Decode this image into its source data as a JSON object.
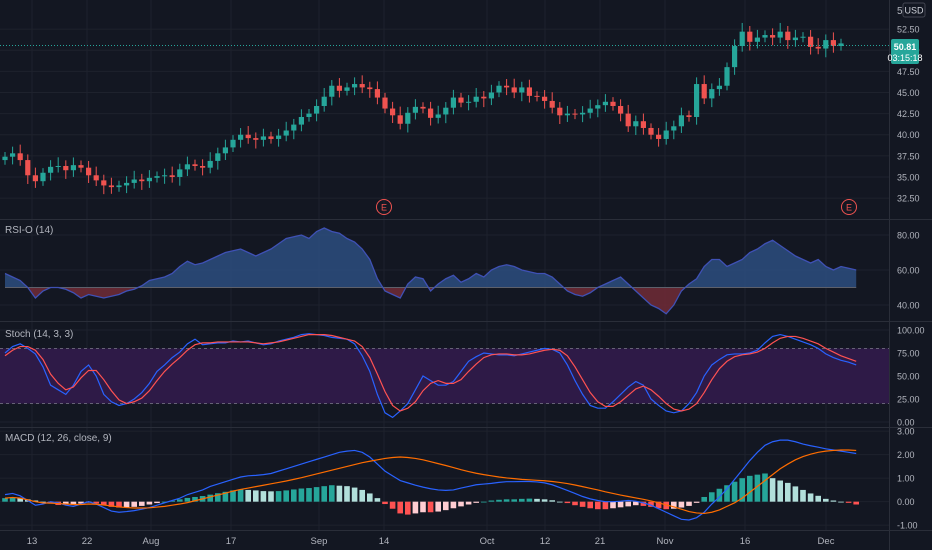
{
  "colors": {
    "background": "#131722",
    "grid": "#1e222d",
    "separator": "#2a2e39",
    "text": "#b2b5be",
    "up": "#26a69a",
    "down": "#ef5350",
    "rsi_line": "#3f51b5",
    "stoch_k": "#2962ff",
    "stoch_d": "#ff5252",
    "stoch_band": "#2e1a47",
    "macd_line": "#2962ff",
    "signal_line": "#ff6d00",
    "price_badge": "#26a69a"
  },
  "currency": "USD",
  "current_price": "50.81",
  "countdown": "03:15:18",
  "earnings_marker": "E",
  "x_axis_labels": [
    "13",
    "22",
    "Aug",
    "17",
    "Sep",
    "14",
    "Oct",
    "12",
    "21",
    "Nov",
    "16",
    "Dec"
  ],
  "panels": {
    "price": {
      "yticks": [
        "52.50",
        "50.00",
        "47.50",
        "45.00",
        "42.50",
        "40.00",
        "37.50",
        "35.00",
        "32.50"
      ],
      "top_label": "5"
    },
    "rsi": {
      "title": "RSI-O (14)",
      "yticks": [
        "80.00",
        "60.00",
        "40.00"
      ]
    },
    "stoch": {
      "title": "Stoch (14, 3, 3)",
      "yticks": [
        "100.00",
        "75.00",
        "50.00",
        "25.00",
        "0.00"
      ]
    },
    "macd": {
      "title": "MACD (12, 26, close, 9)",
      "yticks": [
        "3.00",
        "2.00",
        "1.00",
        "0.00",
        "-1.00"
      ]
    }
  },
  "chart_data": [
    {
      "type": "candlestick",
      "title": "",
      "ylim": [
        30.5,
        55
      ],
      "close": [
        37.4,
        37.8,
        37.0,
        35.2,
        34.5,
        35.5,
        36.2,
        36.3,
        35.8,
        36.4,
        36.1,
        35.2,
        34.6,
        34.0,
        33.8,
        34.0,
        34.3,
        34.7,
        34.5,
        34.9,
        35.1,
        35.2,
        35.0,
        35.9,
        36.5,
        36.3,
        36.1,
        36.9,
        37.8,
        38.5,
        39.4,
        40.0,
        39.6,
        39.4,
        39.8,
        39.5,
        39.9,
        40.5,
        41.2,
        42.1,
        42.5,
        43.4,
        44.5,
        45.8,
        45.2,
        45.6,
        46.0,
        45.6,
        45.4,
        44.4,
        43.1,
        42.3,
        41.3,
        42.6,
        43.3,
        43.1,
        42.0,
        42.4,
        43.2,
        44.4,
        43.8,
        43.9,
        44.5,
        44.3,
        45.0,
        45.8,
        45.6,
        45.0,
        45.6,
        44.6,
        44.5,
        44.0,
        43.2,
        42.3,
        42.5,
        42.4,
        42.6,
        43.1,
        43.5,
        43.9,
        43.4,
        42.5,
        41.0,
        41.6,
        40.8,
        40.0,
        39.5,
        40.5,
        41.0,
        42.3,
        42.1,
        46.0,
        44.3,
        45.4,
        45.8,
        48.0,
        50.5,
        52.2,
        51.0,
        51.5,
        51.8,
        51.5,
        52.2,
        51.2,
        51.5,
        51.6,
        50.4,
        50.2,
        51.2,
        50.5,
        50.81
      ],
      "up_color": "#26a69a",
      "down_color": "#ef5350"
    },
    {
      "type": "area",
      "title": "RSI-O (14)",
      "baseline": 50,
      "ylim": [
        32,
        88
      ],
      "values": [
        58,
        56,
        54,
        50,
        44,
        48,
        50,
        50,
        49,
        47,
        44,
        46,
        45,
        44,
        45,
        46,
        48,
        49,
        51,
        54,
        55,
        56,
        58,
        62,
        65,
        63,
        64,
        66,
        68,
        70,
        71,
        72,
        70,
        68,
        70,
        72,
        75,
        78,
        79,
        80,
        78,
        82,
        84,
        82,
        81,
        78,
        76,
        72,
        66,
        55,
        48,
        46,
        44,
        52,
        56,
        55,
        48,
        52,
        55,
        57,
        53,
        55,
        58,
        56,
        60,
        62,
        63,
        62,
        60,
        59,
        58,
        58,
        56,
        52,
        48,
        46,
        45,
        47,
        50,
        52,
        54,
        56,
        52,
        48,
        44,
        40,
        38,
        35,
        40,
        48,
        52,
        55,
        62,
        66,
        66,
        62,
        64,
        66,
        70,
        72,
        75,
        77,
        74,
        71,
        68,
        66,
        64,
        66,
        62,
        60,
        62,
        61,
        60
      ],
      "line_color": "#3f51b5",
      "above_fill": "#2b4a7a",
      "below_fill": "#6b2a35"
    },
    {
      "type": "line",
      "title": "Stoch (14, 3, 3)",
      "ylim": [
        0,
        100
      ],
      "bands": [
        20,
        80
      ],
      "series": [
        {
          "name": "K",
          "values": [
            75,
            82,
            85,
            80,
            74,
            60,
            40,
            35,
            30,
            40,
            55,
            62,
            50,
            30,
            22,
            18,
            20,
            25,
            32,
            42,
            55,
            62,
            70,
            76,
            85,
            90,
            84,
            85,
            86,
            86,
            88,
            87,
            88,
            86,
            84,
            85,
            88,
            90,
            92,
            95,
            96,
            95,
            94,
            92,
            91,
            90,
            85,
            72,
            55,
            30,
            10,
            5,
            12,
            20,
            35,
            50,
            45,
            40,
            40,
            44,
            55,
            66,
            71,
            75,
            74,
            73,
            73,
            72,
            74,
            76,
            78,
            80,
            79,
            75,
            62,
            45,
            30,
            18,
            15,
            15,
            22,
            30,
            38,
            44,
            40,
            25,
            18,
            12,
            10,
            12,
            20,
            32,
            50,
            62,
            68,
            73,
            74,
            74,
            75,
            78,
            86,
            93,
            95,
            93,
            90,
            87,
            84,
            80,
            74,
            70,
            67,
            65,
            62
          ],
          "color": "#2962ff"
        },
        {
          "name": "D",
          "values": [
            72,
            78,
            82,
            82,
            78,
            68,
            52,
            42,
            35,
            38,
            48,
            56,
            56,
            46,
            34,
            24,
            20,
            22,
            26,
            34,
            45,
            55,
            63,
            70,
            78,
            84,
            86,
            86,
            87,
            87,
            87,
            87,
            87,
            86,
            85,
            86,
            87,
            89,
            91,
            93,
            95,
            95,
            95,
            94,
            92,
            90,
            88,
            82,
            70,
            52,
            33,
            18,
            12,
            15,
            22,
            34,
            42,
            45,
            42,
            42,
            46,
            55,
            63,
            70,
            73,
            74,
            74,
            73,
            73,
            74,
            76,
            78,
            79,
            78,
            72,
            60,
            46,
            32,
            22,
            17,
            17,
            22,
            29,
            36,
            39,
            35,
            28,
            20,
            14,
            12,
            14,
            20,
            32,
            46,
            58,
            66,
            71,
            73,
            74,
            76,
            80,
            86,
            91,
            93,
            93,
            91,
            88,
            85,
            80,
            76,
            72,
            69,
            66
          ],
          "color": "#ff5252"
        }
      ]
    },
    {
      "type": "bar",
      "title": "MACD (12, 26, close, 9)",
      "ylim": [
        -1.12,
        3.05
      ],
      "histogram": [
        0.15,
        0.18,
        0.15,
        0.1,
        0.05,
        0.0,
        -0.08,
        -0.14,
        -0.12,
        -0.1,
        -0.08,
        -0.04,
        -0.08,
        -0.15,
        -0.22,
        -0.25,
        -0.24,
        -0.22,
        -0.18,
        -0.12,
        -0.06,
        0.0,
        0.04,
        0.1,
        0.16,
        0.2,
        0.24,
        0.3,
        0.36,
        0.42,
        0.48,
        0.52,
        0.5,
        0.48,
        0.45,
        0.44,
        0.45,
        0.48,
        0.52,
        0.56,
        0.58,
        0.62,
        0.66,
        0.7,
        0.68,
        0.66,
        0.6,
        0.5,
        0.35,
        0.15,
        -0.1,
        -0.3,
        -0.5,
        -0.55,
        -0.5,
        -0.45,
        -0.45,
        -0.42,
        -0.36,
        -0.28,
        -0.2,
        -0.12,
        -0.05,
        0.0,
        0.05,
        0.08,
        0.1,
        0.1,
        0.12,
        0.13,
        0.12,
        0.1,
        0.06,
        0.0,
        -0.06,
        -0.15,
        -0.22,
        -0.28,
        -0.32,
        -0.32,
        -0.28,
        -0.24,
        -0.2,
        -0.15,
        -0.18,
        -0.22,
        -0.28,
        -0.32,
        -0.3,
        -0.25,
        -0.18,
        -0.05,
        0.2,
        0.4,
        0.55,
        0.7,
        0.85,
        1.0,
        1.1,
        1.15,
        1.2,
        1.0,
        0.9,
        0.8,
        0.65,
        0.5,
        0.35,
        0.25,
        0.12,
        0.05,
        0.0,
        -0.05,
        -0.12
      ],
      "series": [
        {
          "name": "MACD",
          "values": [
            0.3,
            0.35,
            0.25,
            0.05,
            -0.15,
            -0.1,
            0.0,
            -0.05,
            -0.15,
            -0.2,
            -0.1,
            0.0,
            -0.1,
            -0.25,
            -0.4,
            -0.45,
            -0.42,
            -0.38,
            -0.32,
            -0.25,
            -0.15,
            -0.05,
            0.05,
            0.15,
            0.3,
            0.4,
            0.5,
            0.65,
            0.75,
            0.85,
            0.95,
            1.05,
            1.1,
            1.12,
            1.15,
            1.2,
            1.3,
            1.4,
            1.5,
            1.6,
            1.7,
            1.8,
            1.9,
            2.0,
            2.1,
            2.15,
            2.18,
            2.1,
            1.9,
            1.6,
            1.3,
            1.1,
            0.9,
            0.8,
            0.7,
            0.62,
            0.55,
            0.5,
            0.48,
            0.5,
            0.58,
            0.65,
            0.72,
            0.75,
            0.78,
            0.82,
            0.85,
            0.85,
            0.86,
            0.86,
            0.84,
            0.8,
            0.72,
            0.6,
            0.48,
            0.35,
            0.22,
            0.12,
            0.05,
            0.0,
            0.0,
            0.02,
            0.05,
            0.02,
            -0.05,
            -0.15,
            -0.3,
            -0.45,
            -0.6,
            -0.75,
            -0.78,
            -0.68,
            -0.45,
            -0.1,
            0.2,
            0.55,
            0.95,
            1.35,
            1.75,
            2.1,
            2.4,
            2.55,
            2.62,
            2.62,
            2.55,
            2.45,
            2.38,
            2.32,
            2.25,
            2.2,
            2.15,
            2.1,
            2.05
          ],
          "color": "#2962ff"
        },
        {
          "name": "Signal",
          "values": [
            0.15,
            0.18,
            0.15,
            0.08,
            0.0,
            -0.05,
            -0.06,
            -0.08,
            -0.1,
            -0.12,
            -0.12,
            -0.1,
            -0.11,
            -0.14,
            -0.18,
            -0.22,
            -0.25,
            -0.27,
            -0.27,
            -0.26,
            -0.23,
            -0.2,
            -0.15,
            -0.1,
            -0.04,
            0.04,
            0.12,
            0.2,
            0.28,
            0.36,
            0.45,
            0.52,
            0.58,
            0.64,
            0.7,
            0.76,
            0.82,
            0.88,
            0.95,
            1.02,
            1.1,
            1.18,
            1.26,
            1.34,
            1.42,
            1.5,
            1.58,
            1.66,
            1.72,
            1.78,
            1.84,
            1.88,
            1.9,
            1.88,
            1.84,
            1.78,
            1.7,
            1.62,
            1.54,
            1.45,
            1.36,
            1.28,
            1.21,
            1.15,
            1.1,
            1.05,
            1.01,
            0.98,
            0.95,
            0.93,
            0.91,
            0.89,
            0.86,
            0.82,
            0.77,
            0.71,
            0.64,
            0.57,
            0.5,
            0.42,
            0.35,
            0.28,
            0.22,
            0.16,
            0.1,
            0.03,
            -0.05,
            -0.14,
            -0.22,
            -0.32,
            -0.42,
            -0.48,
            -0.5,
            -0.45,
            -0.35,
            -0.2,
            -0.05,
            0.15,
            0.4,
            0.65,
            0.9,
            1.15,
            1.4,
            1.6,
            1.78,
            1.92,
            2.02,
            2.1,
            2.15,
            2.18,
            2.2,
            2.2,
            2.18
          ],
          "color": "#ff6d00"
        }
      ]
    }
  ]
}
